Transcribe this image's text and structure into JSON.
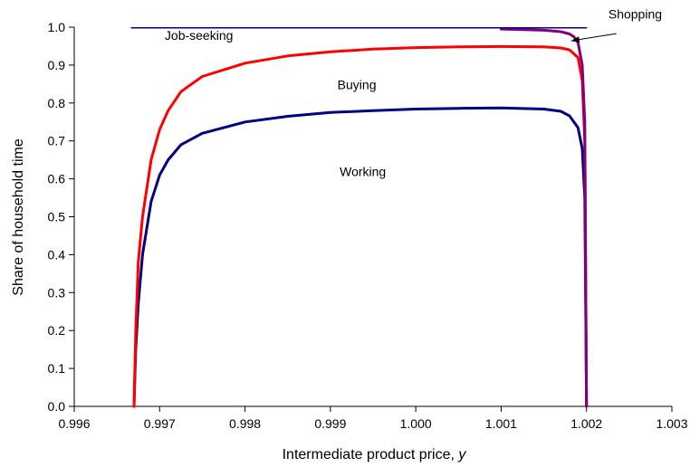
{
  "chart_data": {
    "type": "line",
    "xlabel": "Intermediate product price, ",
    "xlabel_var": "y",
    "ylabel": "Share of household time",
    "xlim": [
      0.996,
      1.003
    ],
    "ylim": [
      0.0,
      1.0
    ],
    "x_ticks": [
      0.996,
      0.997,
      0.998,
      0.999,
      1.0,
      1.001,
      1.002,
      1.003
    ],
    "x_tick_labels": [
      "0.996",
      "0.997",
      "0.998",
      "0.999",
      "1.000",
      "1.001",
      "1.002",
      "1.003"
    ],
    "y_ticks": [
      0.0,
      0.1,
      0.2,
      0.3,
      0.4,
      0.5,
      0.6,
      0.7,
      0.8,
      0.9,
      1.0
    ],
    "y_tick_labels": [
      "0.0",
      "0.1",
      "0.2",
      "0.3",
      "0.4",
      "0.5",
      "0.6",
      "0.7",
      "0.8",
      "0.9",
      "1.0"
    ],
    "grid": false,
    "series": [
      {
        "color": "#000080",
        "x": [
          0.9967,
          0.99672,
          0.99675,
          0.9968,
          0.9969,
          0.997,
          0.9971,
          0.99725,
          0.9975,
          0.998,
          0.9985,
          0.999,
          0.9995,
          1.0,
          1.0005,
          1.001,
          1.0015,
          1.0017,
          1.0018,
          1.0019,
          1.00195,
          1.00198,
          1.002
        ],
        "y": [
          0.0,
          0.15,
          0.27,
          0.4,
          0.54,
          0.61,
          0.65,
          0.69,
          0.72,
          0.75,
          0.765,
          0.775,
          0.78,
          0.784,
          0.786,
          0.787,
          0.784,
          0.778,
          0.766,
          0.735,
          0.68,
          0.55,
          0.0
        ]
      },
      {
        "color": "#ff0000",
        "x": [
          0.9967,
          0.99672,
          0.99675,
          0.9968,
          0.9969,
          0.997,
          0.9971,
          0.99725,
          0.9975,
          0.998,
          0.9985,
          0.999,
          0.9995,
          1.0,
          1.0005,
          1.001,
          1.0015,
          1.0017,
          1.0018,
          1.0019,
          1.00195,
          1.00198,
          1.002
        ],
        "y": [
          0.0,
          0.2,
          0.38,
          0.5,
          0.65,
          0.73,
          0.78,
          0.83,
          0.87,
          0.905,
          0.924,
          0.935,
          0.942,
          0.946,
          0.948,
          0.949,
          0.948,
          0.945,
          0.94,
          0.92,
          0.86,
          0.7,
          0.0
        ]
      },
      {
        "color": "#800080",
        "x": [
          1.001,
          1.0015,
          1.0017,
          1.0018,
          1.00185,
          1.0019,
          1.00195,
          1.00198,
          1.002
        ],
        "y": [
          0.995,
          0.992,
          0.988,
          0.982,
          0.975,
          0.96,
          0.9,
          0.75,
          0.0
        ]
      },
      {
        "color": "#000080",
        "x": [
          0.99667,
          1.002
        ],
        "y": [
          0.998,
          0.998
        ]
      }
    ],
    "annotations": [
      {
        "text": "Job-seeking",
        "x": 0.99746,
        "y": 0.966
      },
      {
        "text": "Buying",
        "x": 0.99931,
        "y": 0.836
      },
      {
        "text": "Working",
        "x": 0.99938,
        "y": 0.607
      },
      {
        "text": "Shopping",
        "x": 1.00257,
        "y": 1.023
      }
    ],
    "arrow": {
      "from": [
        1.00235,
        0.983
      ],
      "to": [
        1.00182,
        0.964
      ]
    }
  }
}
